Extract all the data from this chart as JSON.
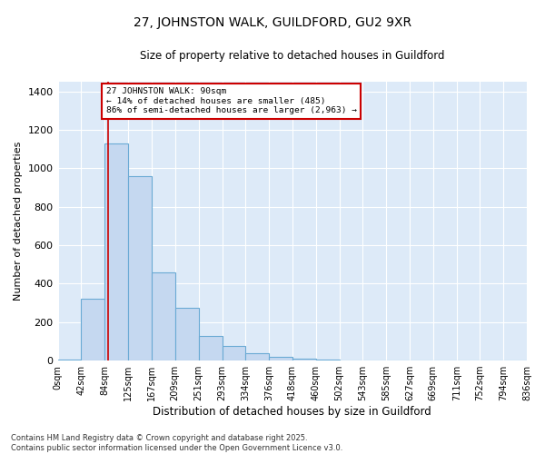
{
  "title_line1": "27, JOHNSTON WALK, GUILDFORD, GU2 9XR",
  "title_line2": "Size of property relative to detached houses in Guildford",
  "xlabel": "Distribution of detached houses by size in Guildford",
  "ylabel": "Number of detached properties",
  "annotation_line1": "27 JOHNSTON WALK: 90sqm",
  "annotation_line2": "← 14% of detached houses are smaller (485)",
  "annotation_line3": "86% of semi-detached houses are larger (2,963) →",
  "property_size_sqm": 90,
  "bin_edges": [
    0,
    42,
    84,
    125,
    167,
    209,
    251,
    293,
    334,
    376,
    418,
    460,
    502,
    543,
    585,
    627,
    669,
    711,
    752,
    794,
    836
  ],
  "bar_heights": [
    5,
    320,
    1130,
    960,
    460,
    275,
    130,
    75,
    40,
    20,
    10,
    5,
    0,
    0,
    0,
    0,
    0,
    0,
    0,
    0
  ],
  "bar_color": "#c5d8f0",
  "bar_edge_color": "#6aaad4",
  "bar_edge_width": 0.8,
  "vline_color": "#cc0000",
  "vline_x": 90,
  "annotation_box_color": "#cc0000",
  "fig_bg_color": "#ffffff",
  "plot_bg_color": "#ddeaf8",
  "ylim": [
    0,
    1450
  ],
  "yticks": [
    0,
    200,
    400,
    600,
    800,
    1000,
    1200,
    1400
  ],
  "tick_labels": [
    "0sqm",
    "42sqm",
    "84sqm",
    "125sqm",
    "167sqm",
    "209sqm",
    "251sqm",
    "293sqm",
    "334sqm",
    "376sqm",
    "418sqm",
    "460sqm",
    "502sqm",
    "543sqm",
    "585sqm",
    "627sqm",
    "669sqm",
    "711sqm",
    "752sqm",
    "794sqm",
    "836sqm"
  ],
  "footer_line1": "Contains HM Land Registry data © Crown copyright and database right 2025.",
  "footer_line2": "Contains public sector information licensed under the Open Government Licence v3.0."
}
